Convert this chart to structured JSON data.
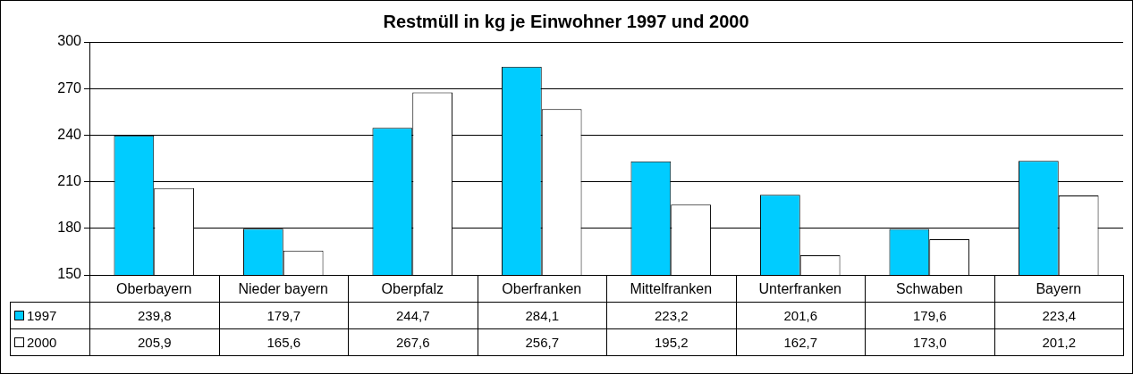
{
  "chart_data": {
    "type": "bar",
    "title": "Restmüll in kg je Einwohner 1997 und 2000",
    "categories": [
      "Oberbayern",
      "Nieder bayern",
      "Oberpfalz",
      "Oberfranken",
      "Mittelfranken",
      "Unterfranken",
      "Schwaben",
      "Bayern"
    ],
    "series": [
      {
        "name": "1997",
        "color": "#00ccff",
        "values": [
          239.8,
          179.7,
          244.7,
          284.1,
          223.2,
          201.6,
          179.6,
          223.4
        ],
        "value_labels": [
          "239,8",
          "179,7",
          "244,7",
          "284,1",
          "223,2",
          "201,6",
          "179,6",
          "223,4"
        ]
      },
      {
        "name": "2000",
        "color": "#ffffff",
        "values": [
          205.9,
          165.6,
          267.6,
          256.7,
          195.2,
          162.7,
          173.0,
          201.2
        ],
        "value_labels": [
          "205,9",
          "165,6",
          "267,6",
          "256,7",
          "195,2",
          "162,7",
          "173,0",
          "201,2"
        ]
      }
    ],
    "ylim": [
      150,
      300
    ],
    "yticks": [
      150,
      180,
      210,
      240,
      270,
      300
    ],
    "grid": "y",
    "legend": "bottom left"
  }
}
